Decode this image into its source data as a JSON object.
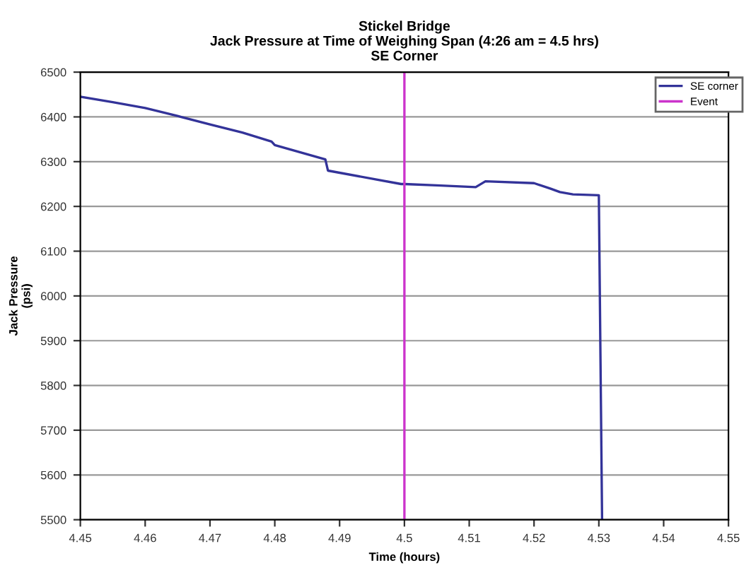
{
  "chart_data": {
    "type": "line",
    "title": "Stickel Bridge\nJack Pressure at Time of Weighing Span (4:26 am = 4.5 hrs)\nSE Corner",
    "xlabel": "Time (hours)",
    "ylabel": "Jack Pressure\n(psi)",
    "series": [
      {
        "name": "SE corner",
        "color": "#333399",
        "x": [
          4.45,
          4.455,
          4.46,
          4.465,
          4.47,
          4.475,
          4.4795,
          4.48,
          4.4878,
          4.4882,
          4.4995,
          4.5,
          4.505,
          4.511,
          4.5125,
          4.52,
          4.5225,
          4.524,
          4.526,
          4.53,
          4.5305
        ],
        "values": [
          6445,
          6433,
          6420,
          6402,
          6383,
          6365,
          6345,
          6337,
          6305,
          6280,
          6250,
          6250,
          6247,
          6243,
          6256,
          6252,
          6240,
          6232,
          6227,
          6225,
          5500
        ]
      },
      {
        "name": "Event",
        "color": "#cc33cc",
        "x": [
          4.5,
          4.5
        ],
        "values": [
          5500,
          6500
        ]
      }
    ],
    "xlim": [
      4.45,
      4.55
    ],
    "xticks": [
      4.45,
      4.46,
      4.47,
      4.48,
      4.49,
      4.5,
      4.51,
      4.52,
      4.53,
      4.54,
      4.55
    ],
    "ylim": [
      5500,
      6500
    ],
    "yticks": [
      5500,
      5600,
      5700,
      5800,
      5900,
      6000,
      6100,
      6200,
      6300,
      6400,
      6500
    ],
    "grid": "y",
    "legend": "top right",
    "marker": "none",
    "line_style": "solid"
  }
}
